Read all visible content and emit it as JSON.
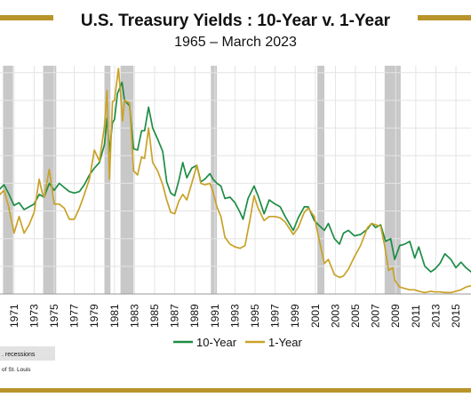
{
  "header": {
    "title": "U.S. Treasury Yields : 10-Year v. 1-Year",
    "subtitle": "1965 – March 2023"
  },
  "colors": {
    "accent_bar": "#B8942A",
    "series_10y": "#1E8C45",
    "series_1y": "#C9A227",
    "recession": "#C8C8C8",
    "grid": "#E4E4E4",
    "text": "#111111"
  },
  "notes": {
    "recession_note": ". recessions",
    "source_note": "of St. Louis"
  },
  "chart_data": {
    "type": "line",
    "title": "U.S. Treasury Yields : 10-Year v. 1-Year",
    "subtitle": "1965 – March 2023",
    "xlabel": "",
    "ylabel": "",
    "xlim": [
      1969.6,
      2016.5
    ],
    "ylim": [
      0,
      16.5
    ],
    "grid": true,
    "legend": "bottom-center",
    "x_ticks": [
      1971,
      1973,
      1975,
      1977,
      1979,
      1981,
      1983,
      1985,
      1987,
      1989,
      1991,
      1993,
      1995,
      1997,
      1999,
      2001,
      2003,
      2005,
      2007,
      2009,
      2011,
      2013,
      2015
    ],
    "x_tick_labels": [
      "1971",
      "1973",
      "1975",
      "1977",
      "1979",
      "1981",
      "1983",
      "1985",
      "1987",
      "1989",
      "1991",
      "1993",
      "1995",
      "1997",
      "1999",
      "2001",
      "2003",
      "2005",
      "2007",
      "2009",
      "2011",
      "2013",
      "2015"
    ],
    "recessions": [
      [
        1969.9,
        1970.9
      ],
      [
        1973.9,
        1975.2
      ],
      [
        1980.0,
        1980.6
      ],
      [
        1981.6,
        1982.9
      ],
      [
        1990.6,
        1991.2
      ],
      [
        2001.2,
        2001.9
      ],
      [
        2007.9,
        2009.5
      ]
    ],
    "series": [
      {
        "name": "10-Year",
        "color": "#1E8C45",
        "points": [
          [
            1969.6,
            7.6
          ],
          [
            1970.0,
            7.9
          ],
          [
            1970.5,
            7.2
          ],
          [
            1971.0,
            6.4
          ],
          [
            1971.5,
            6.6
          ],
          [
            1972.0,
            6.1
          ],
          [
            1972.5,
            6.3
          ],
          [
            1973.0,
            6.5
          ],
          [
            1973.5,
            7.2
          ],
          [
            1974.0,
            7.0
          ],
          [
            1974.5,
            8.0
          ],
          [
            1975.0,
            7.5
          ],
          [
            1975.5,
            8.0
          ],
          [
            1976.0,
            7.7
          ],
          [
            1976.5,
            7.4
          ],
          [
            1977.0,
            7.3
          ],
          [
            1977.5,
            7.4
          ],
          [
            1978.0,
            7.9
          ],
          [
            1978.5,
            8.6
          ],
          [
            1979.0,
            9.1
          ],
          [
            1979.5,
            9.5
          ],
          [
            1980.0,
            10.8
          ],
          [
            1980.25,
            12.7
          ],
          [
            1980.5,
            10.3
          ],
          [
            1980.8,
            12.4
          ],
          [
            1981.0,
            12.6
          ],
          [
            1981.3,
            14.5
          ],
          [
            1981.75,
            15.3
          ],
          [
            1982.0,
            14.0
          ],
          [
            1982.5,
            13.6
          ],
          [
            1982.9,
            10.5
          ],
          [
            1983.3,
            10.4
          ],
          [
            1983.7,
            11.8
          ],
          [
            1984.0,
            11.8
          ],
          [
            1984.4,
            13.5
          ],
          [
            1984.8,
            12.0
          ],
          [
            1985.3,
            11.2
          ],
          [
            1985.8,
            10.3
          ],
          [
            1986.2,
            8.1
          ],
          [
            1986.6,
            7.3
          ],
          [
            1987.0,
            7.1
          ],
          [
            1987.4,
            8.2
          ],
          [
            1987.8,
            9.5
          ],
          [
            1988.2,
            8.4
          ],
          [
            1988.7,
            9.1
          ],
          [
            1989.2,
            9.3
          ],
          [
            1989.6,
            8.1
          ],
          [
            1990.0,
            8.3
          ],
          [
            1990.5,
            8.7
          ],
          [
            1990.8,
            8.3
          ],
          [
            1991.2,
            8.0
          ],
          [
            1991.6,
            7.8
          ],
          [
            1992.0,
            6.9
          ],
          [
            1992.5,
            7.0
          ],
          [
            1993.0,
            6.6
          ],
          [
            1993.5,
            5.9
          ],
          [
            1993.8,
            5.4
          ],
          [
            1994.3,
            6.9
          ],
          [
            1994.9,
            7.8
          ],
          [
            1995.3,
            7.1
          ],
          [
            1995.9,
            5.8
          ],
          [
            1996.4,
            6.8
          ],
          [
            1997.0,
            6.5
          ],
          [
            1997.5,
            6.3
          ],
          [
            1998.0,
            5.6
          ],
          [
            1998.8,
            4.6
          ],
          [
            1999.3,
            5.5
          ],
          [
            1999.9,
            6.3
          ],
          [
            2000.3,
            6.3
          ],
          [
            2000.9,
            5.3
          ],
          [
            2001.3,
            5.0
          ],
          [
            2001.9,
            4.6
          ],
          [
            2002.3,
            5.1
          ],
          [
            2002.9,
            4.0
          ],
          [
            2003.4,
            3.6
          ],
          [
            2003.8,
            4.4
          ],
          [
            2004.3,
            4.6
          ],
          [
            2004.9,
            4.2
          ],
          [
            2005.5,
            4.3
          ],
          [
            2006.2,
            4.7
          ],
          [
            2006.6,
            5.1
          ],
          [
            2007.0,
            4.8
          ],
          [
            2007.5,
            5.0
          ],
          [
            2008.0,
            3.8
          ],
          [
            2008.5,
            4.0
          ],
          [
            2008.9,
            2.5
          ],
          [
            2009.4,
            3.5
          ],
          [
            2009.9,
            3.6
          ],
          [
            2010.4,
            3.8
          ],
          [
            2010.9,
            2.6
          ],
          [
            2011.3,
            3.4
          ],
          [
            2011.9,
            2.0
          ],
          [
            2012.5,
            1.6
          ],
          [
            2012.9,
            1.8
          ],
          [
            2013.4,
            2.2
          ],
          [
            2013.9,
            2.9
          ],
          [
            2014.5,
            2.5
          ],
          [
            2015.0,
            1.9
          ],
          [
            2015.5,
            2.3
          ],
          [
            2016.0,
            1.9
          ],
          [
            2016.5,
            1.6
          ]
        ]
      },
      {
        "name": "1-Year",
        "color": "#C9A227",
        "points": [
          [
            1969.6,
            7.2
          ],
          [
            1970.0,
            7.5
          ],
          [
            1970.4,
            6.5
          ],
          [
            1970.8,
            5.1
          ],
          [
            1971.0,
            4.4
          ],
          [
            1971.5,
            5.6
          ],
          [
            1972.0,
            4.4
          ],
          [
            1972.5,
            5.0
          ],
          [
            1973.0,
            5.9
          ],
          [
            1973.5,
            8.3
          ],
          [
            1973.8,
            7.3
          ],
          [
            1974.0,
            7.0
          ],
          [
            1974.5,
            9.0
          ],
          [
            1975.0,
            6.5
          ],
          [
            1975.5,
            6.5
          ],
          [
            1976.0,
            6.2
          ],
          [
            1976.5,
            5.4
          ],
          [
            1977.0,
            5.4
          ],
          [
            1977.5,
            6.2
          ],
          [
            1978.0,
            7.2
          ],
          [
            1978.5,
            8.3
          ],
          [
            1979.0,
            10.4
          ],
          [
            1979.5,
            9.6
          ],
          [
            1980.0,
            12.1
          ],
          [
            1980.25,
            14.7
          ],
          [
            1980.5,
            8.3
          ],
          [
            1980.8,
            13.9
          ],
          [
            1981.0,
            14.0
          ],
          [
            1981.4,
            16.3
          ],
          [
            1981.6,
            14.5
          ],
          [
            1981.8,
            12.5
          ],
          [
            1982.0,
            14.0
          ],
          [
            1982.5,
            13.8
          ],
          [
            1982.9,
            8.9
          ],
          [
            1983.3,
            8.6
          ],
          [
            1983.7,
            9.9
          ],
          [
            1984.0,
            9.8
          ],
          [
            1984.4,
            12.0
          ],
          [
            1984.8,
            9.5
          ],
          [
            1985.3,
            8.9
          ],
          [
            1985.8,
            7.9
          ],
          [
            1986.2,
            6.8
          ],
          [
            1986.6,
            5.9
          ],
          [
            1987.0,
            5.8
          ],
          [
            1987.4,
            6.7
          ],
          [
            1987.8,
            7.2
          ],
          [
            1988.2,
            6.8
          ],
          [
            1988.7,
            8.0
          ],
          [
            1989.2,
            9.3
          ],
          [
            1989.6,
            8.0
          ],
          [
            1990.0,
            7.9
          ],
          [
            1990.5,
            8.0
          ],
          [
            1990.8,
            7.4
          ],
          [
            1991.2,
            6.3
          ],
          [
            1991.6,
            5.6
          ],
          [
            1992.0,
            4.1
          ],
          [
            1992.5,
            3.6
          ],
          [
            1993.0,
            3.4
          ],
          [
            1993.5,
            3.3
          ],
          [
            1994.0,
            3.5
          ],
          [
            1994.5,
            5.4
          ],
          [
            1994.9,
            7.1
          ],
          [
            1995.3,
            6.2
          ],
          [
            1995.9,
            5.3
          ],
          [
            1996.4,
            5.6
          ],
          [
            1997.0,
            5.6
          ],
          [
            1997.5,
            5.5
          ],
          [
            1998.0,
            5.2
          ],
          [
            1998.8,
            4.3
          ],
          [
            1999.3,
            4.8
          ],
          [
            1999.9,
            5.9
          ],
          [
            2000.3,
            6.2
          ],
          [
            2000.9,
            5.6
          ],
          [
            2001.3,
            4.2
          ],
          [
            2001.9,
            2.2
          ],
          [
            2002.3,
            2.5
          ],
          [
            2002.9,
            1.4
          ],
          [
            2003.4,
            1.2
          ],
          [
            2003.8,
            1.3
          ],
          [
            2004.3,
            1.8
          ],
          [
            2004.9,
            2.7
          ],
          [
            2005.5,
            3.5
          ],
          [
            2006.2,
            4.8
          ],
          [
            2006.6,
            5.1
          ],
          [
            2007.0,
            5.0
          ],
          [
            2007.5,
            4.9
          ],
          [
            2007.9,
            3.5
          ],
          [
            2008.3,
            1.7
          ],
          [
            2008.7,
            1.9
          ],
          [
            2008.9,
            1.0
          ],
          [
            2009.4,
            0.5
          ],
          [
            2009.9,
            0.4
          ],
          [
            2010.4,
            0.3
          ],
          [
            2010.9,
            0.3
          ],
          [
            2011.3,
            0.2
          ],
          [
            2011.9,
            0.1
          ],
          [
            2012.5,
            0.2
          ],
          [
            2012.9,
            0.15
          ],
          [
            2013.4,
            0.15
          ],
          [
            2013.9,
            0.1
          ],
          [
            2014.5,
            0.1
          ],
          [
            2015.0,
            0.2
          ],
          [
            2015.5,
            0.3
          ],
          [
            2016.0,
            0.5
          ],
          [
            2016.5,
            0.6
          ]
        ]
      }
    ]
  }
}
